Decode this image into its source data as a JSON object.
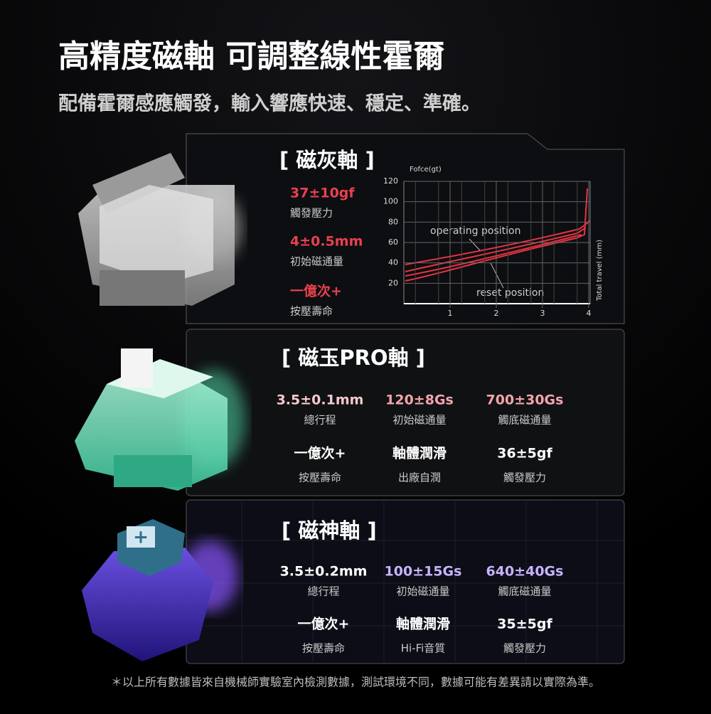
{
  "header": {
    "title": "高精度磁軸 可調整線性霍爾",
    "subtitle": "配備霍爾感應觸發，輸入響應快速、穩定、準確。"
  },
  "switches": [
    {
      "name": "[ 磁灰軸 ]",
      "specs": [
        {
          "value": "37±10gf",
          "label": "觸發壓力"
        },
        {
          "value": "4±0.5mm",
          "label": "初始磁通量"
        },
        {
          "value": "一億次+",
          "label": "按壓壽命"
        }
      ],
      "chart": {
        "y_axis_label": "Fofce(gt)",
        "x_axis_label": "Total travel (mm)",
        "yticks": [
          20,
          40,
          60,
          80,
          100,
          120
        ],
        "xticks": [
          1,
          2,
          3,
          4
        ],
        "annotations": [
          "operating position",
          "reset position"
        ]
      }
    },
    {
      "name": "[ 磁玉PRO軸 ]",
      "specs": [
        {
          "value": "3.5±0.1mm",
          "label": "總行程"
        },
        {
          "value": "120±8Gs",
          "label": "初始磁通量"
        },
        {
          "value": "700±30Gs",
          "label": "觸底磁通量"
        },
        {
          "value": "一億次+",
          "label": "按壓壽命"
        },
        {
          "value": "軸體潤滑",
          "label": "出廠自潤"
        },
        {
          "value": "36±5gf",
          "label": "觸發壓力"
        }
      ]
    },
    {
      "name": "[ 磁神軸 ]",
      "specs": [
        {
          "value": "3.5±0.2mm",
          "label": "總行程"
        },
        {
          "value": "100±15Gs",
          "label": "初始磁通量"
        },
        {
          "value": "640±40Gs",
          "label": "觸底磁通量"
        },
        {
          "value": "一億次+",
          "label": "按壓壽命"
        },
        {
          "value": "軸體潤滑",
          "label": "Hi-Fi音質"
        },
        {
          "value": "35±5gf",
          "label": "觸發壓力"
        }
      ]
    }
  ],
  "footnote": "＊以上所有數據皆來自機械師實驗室內檢測數據，測試環境不同，數據可能有差異請以實際為準。"
}
